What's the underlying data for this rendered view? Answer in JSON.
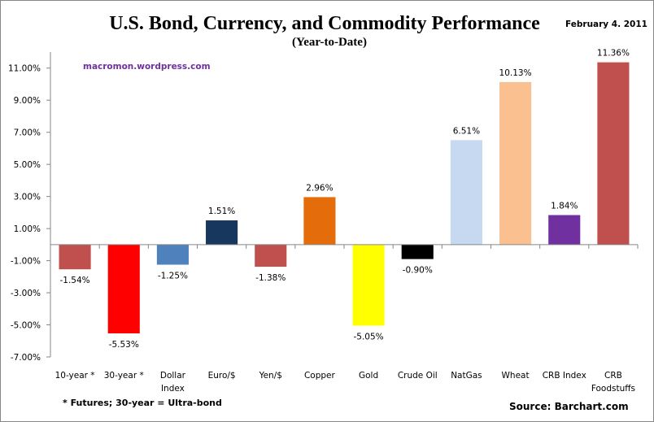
{
  "chart_data": {
    "type": "bar",
    "title": "U.S. Bond, Currency, and Commodity Performance",
    "subtitle": "(Year-to-Date)",
    "date": "February 4. 2011",
    "watermark": "macromon.wordpress.com",
    "footnote": "* Futures; 30-year = Ultra-bond",
    "source": "Source:  Barchart.com",
    "xlabel": "",
    "ylabel": "",
    "ylim": [
      -7,
      12
    ],
    "yticks": [
      11,
      9,
      7,
      5,
      3,
      1,
      -1,
      -3,
      -5,
      -7
    ],
    "ytick_labels": [
      "11.00%",
      "9.00%",
      "7.00%",
      "5.00%",
      "3.00%",
      "1.00%",
      "-1.00%",
      "-3.00%",
      "-5.00%",
      "-7.00%"
    ],
    "grid": false,
    "legend": "none",
    "categories": [
      [
        "10-year *"
      ],
      [
        "30-year *"
      ],
      [
        "Dollar",
        "Index"
      ],
      [
        "Euro/$"
      ],
      [
        "Yen/$"
      ],
      [
        "Copper"
      ],
      [
        "Gold"
      ],
      [
        "Crude Oil"
      ],
      [
        "NatGas"
      ],
      [
        "Wheat"
      ],
      [
        "CRB Index"
      ],
      [
        "CRB",
        "Foodstuffs"
      ]
    ],
    "values": [
      -1.54,
      -5.53,
      -1.25,
      1.51,
      -1.38,
      2.96,
      -5.05,
      -0.9,
      6.51,
      10.13,
      1.84,
      11.36
    ],
    "data_labels": [
      "-1.54%",
      "-5.53%",
      "-1.25%",
      "1.51%",
      "-1.38%",
      "2.96%",
      "-5.05%",
      "-0.90%",
      "6.51%",
      "10.13%",
      "1.84%",
      "11.36%"
    ],
    "colors": [
      "#c0504d",
      "#ff0000",
      "#4f81bd",
      "#17375e",
      "#c0504d",
      "#e46c0a",
      "#ffff00",
      "#000000",
      "#c6d9f1",
      "#fac090",
      "#7030a0",
      "#c0504d"
    ]
  }
}
